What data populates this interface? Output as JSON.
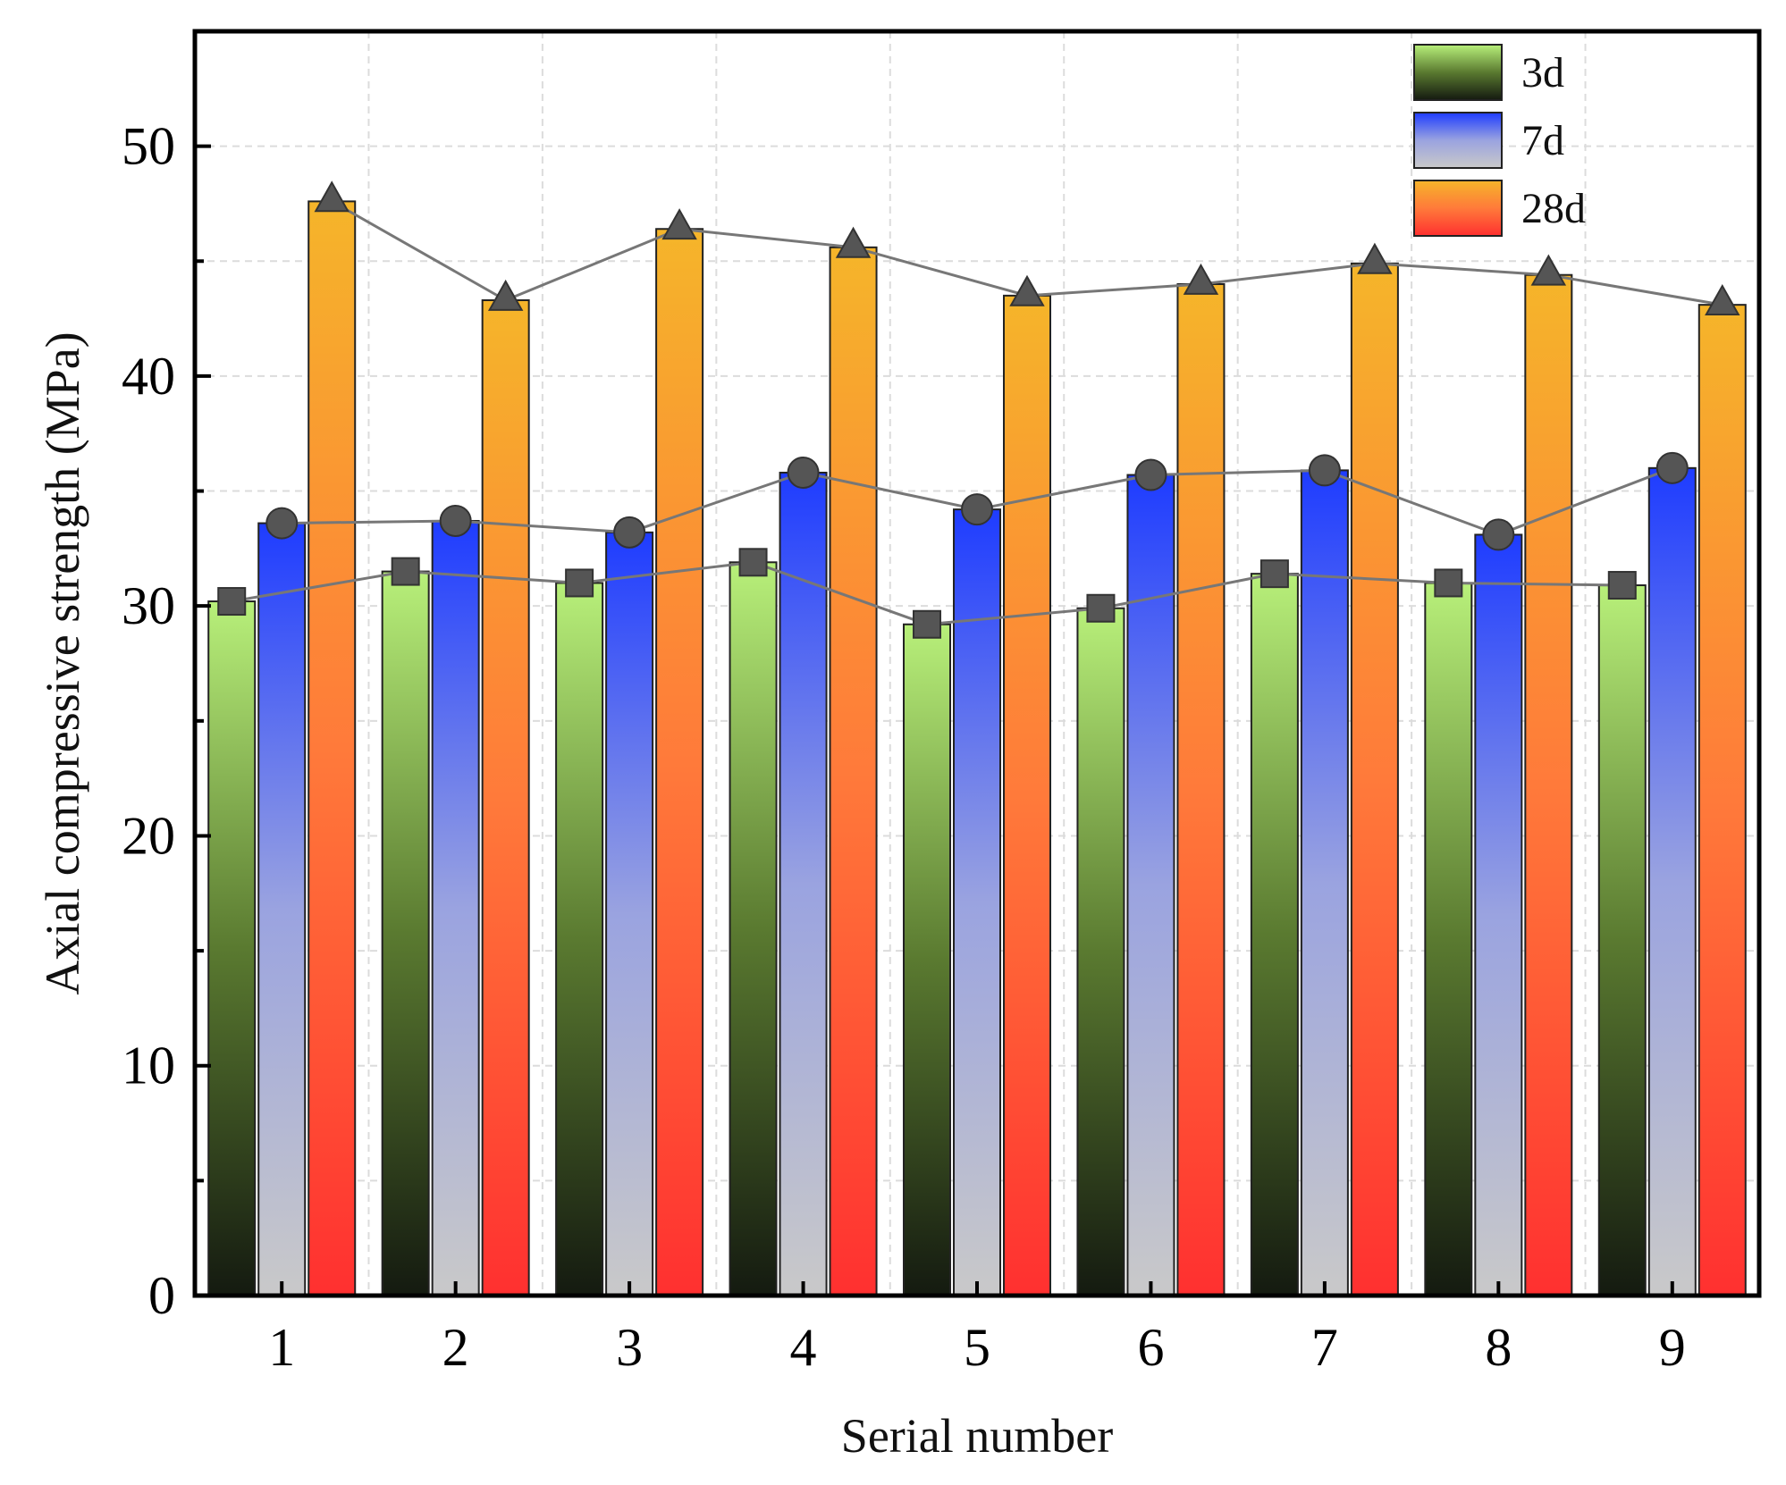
{
  "chart_data": {
    "type": "bar",
    "xlabel": "Serial number",
    "ylabel": "Axial compressive strength (MPa)",
    "categories": [
      "1",
      "2",
      "3",
      "4",
      "5",
      "6",
      "7",
      "8",
      "9"
    ],
    "ylim": [
      0,
      55
    ],
    "yticks": [
      0,
      10,
      20,
      30,
      40,
      50
    ],
    "grid": true,
    "legend_position": "top-right",
    "series": [
      {
        "name": "3d",
        "values": [
          30.2,
          31.5,
          31.0,
          31.9,
          29.2,
          29.9,
          31.4,
          31.0,
          30.9
        ],
        "marker": "square",
        "gradient": [
          "#b8f07a",
          "#5a7a30",
          "#141a10"
        ]
      },
      {
        "name": "7d",
        "values": [
          33.6,
          33.7,
          33.2,
          35.8,
          34.2,
          35.7,
          35.9,
          33.1,
          36.0
        ],
        "marker": "circle",
        "gradient": [
          "#1e3cff",
          "#9aa3e0",
          "#c9c9c9"
        ]
      },
      {
        "name": "28d",
        "values": [
          47.6,
          43.3,
          46.4,
          45.6,
          43.5,
          44.0,
          44.9,
          44.4,
          43.1
        ],
        "marker": "triangle",
        "gradient": [
          "#f5b52a",
          "#ff7a3a",
          "#ff3030"
        ]
      }
    ]
  }
}
